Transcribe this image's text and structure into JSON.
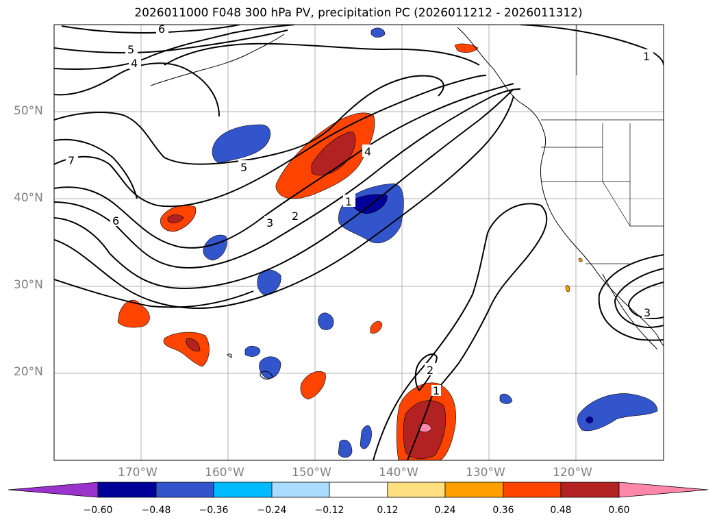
{
  "title": "2026011000 F048 300 hPa PV, precipitation PC (2026011212 - 2026011312)",
  "map": {
    "region": "Northeast Pacific / North America west coast",
    "projection": "PlateCarree",
    "lon_range": [
      -180,
      -110
    ],
    "lat_range": [
      10,
      60
    ],
    "grid": true,
    "lat_labels": [
      "50°N",
      "40°N",
      "30°N",
      "20°N"
    ],
    "lon_labels": [
      "170°W",
      "160°W",
      "150°W",
      "140°W",
      "130°W",
      "120°W"
    ],
    "pv_contour_labels": [
      "6",
      "5",
      "4",
      "7",
      "6",
      "5",
      "4",
      "3",
      "2",
      "1",
      "2",
      "1",
      "1",
      "3"
    ]
  },
  "colorbar": {
    "tick_labels": [
      "−0.60",
      "−0.48",
      "−0.36",
      "−0.24",
      "−0.12",
      "0.12",
      "0.24",
      "0.36",
      "0.48",
      "0.60"
    ],
    "colors": [
      "#9933cc",
      "#000099",
      "#3355cc",
      "#00bbff",
      "#aaddff",
      "#ffffff",
      "#ffe080",
      "#ffa000",
      "#ff4400",
      "#b22222",
      "#ff88aa"
    ]
  }
}
